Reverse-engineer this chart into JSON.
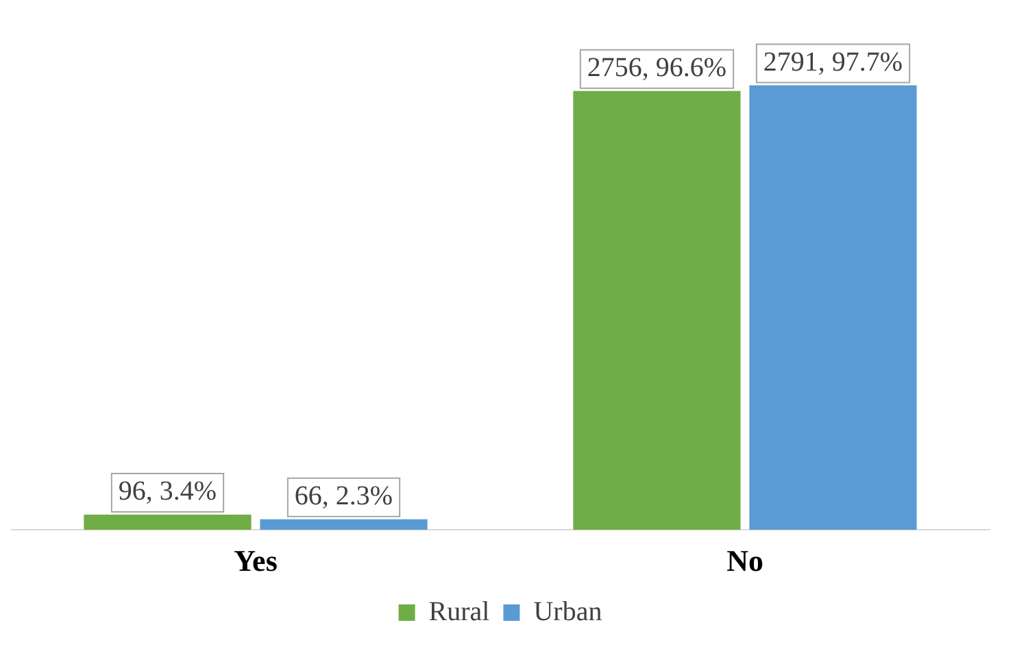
{
  "chart_data": {
    "type": "bar",
    "categories": [
      "Yes",
      "No"
    ],
    "series": [
      {
        "name": "Rural",
        "color": "#70ad47",
        "values": [
          96,
          2756
        ],
        "value_labels": [
          "96, 3.4%",
          "2756, 96.6%"
        ]
      },
      {
        "name": "Urban",
        "color": "#5b9bd5",
        "values": [
          66,
          2791
        ],
        "value_labels": [
          "66, 2.3%",
          "2791, 97.7%"
        ]
      }
    ],
    "legend": "bottom",
    "tick_labels": "x"
  }
}
